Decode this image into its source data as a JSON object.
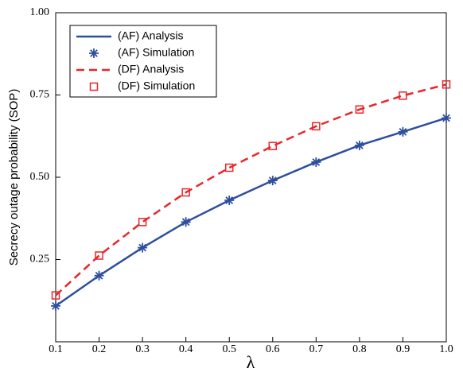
{
  "chart_data": {
    "type": "line",
    "xlabel": "λ",
    "ylabel": "Secrecy outage probability (SOP)",
    "x": [
      0.1,
      0.2,
      0.3,
      0.4,
      0.5,
      0.6,
      0.7,
      0.8,
      0.9,
      1.0
    ],
    "series": [
      {
        "name": "(AF) Analysis",
        "color": "#2e4f9e",
        "style": "solid",
        "values": [
          0.109,
          0.201,
          0.286,
          0.364,
          0.43,
          0.49,
          0.546,
          0.597,
          0.638,
          0.68
        ]
      },
      {
        "name": "(AF) Simulation",
        "color": "#2e4f9e",
        "marker": "asterisk",
        "values": [
          0.109,
          0.201,
          0.286,
          0.364,
          0.43,
          0.49,
          0.546,
          0.597,
          0.638,
          0.68
        ]
      },
      {
        "name": "(DF) Analysis",
        "color": "#e8262a",
        "style": "dashed",
        "values": [
          0.141,
          0.262,
          0.364,
          0.454,
          0.529,
          0.595,
          0.655,
          0.706,
          0.748,
          0.782
        ]
      },
      {
        "name": "(DF) Simulation",
        "color": "#e8262a",
        "marker": "square",
        "values": [
          0.141,
          0.262,
          0.364,
          0.454,
          0.529,
          0.595,
          0.655,
          0.706,
          0.748,
          0.782
        ]
      }
    ],
    "xlim": [
      0.1,
      1.0
    ],
    "xticks": [
      0.1,
      0.2,
      0.3,
      0.4,
      0.5,
      0.6,
      0.7,
      0.8,
      0.9,
      {
        "value": 1.0,
        "label": "1.0"
      }
    ],
    "ylim": [
      0,
      1
    ],
    "yticks": [
      0.25,
      {
        "value": 0.5,
        "label": "0.50"
      },
      0.75,
      {
        "value": 1,
        "label": "1.00"
      }
    ],
    "legend": "upper-left"
  }
}
